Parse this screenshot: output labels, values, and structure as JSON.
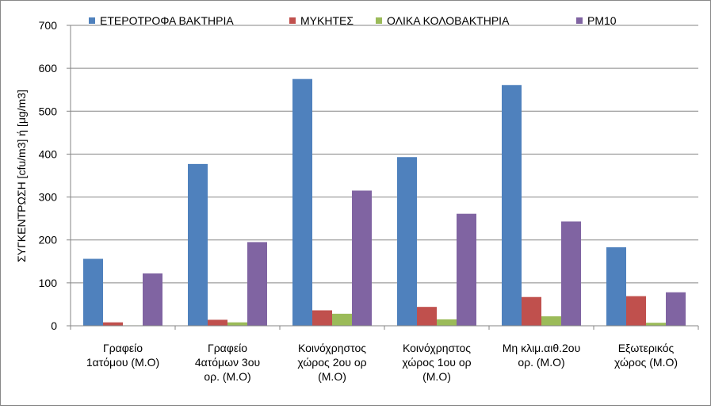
{
  "chart_data": {
    "type": "bar",
    "title": "",
    "xlabel": "",
    "ylabel": "ΣΥΓΚΕΝΤΡΩΣΗ [cfu/m3] ή [μg/m3]",
    "ylim": [
      0,
      700
    ],
    "yticks": [
      0,
      100,
      200,
      300,
      400,
      500,
      600,
      700
    ],
    "grid": "horizontal",
    "legend_position": "top",
    "categories": [
      [
        "Γραφείο",
        "1ατόμου (Μ.Ο)"
      ],
      [
        "Γραφείο",
        "4ατόμων 3ου",
        "ορ. (Μ.Ο)"
      ],
      [
        "Κοινόχρηστος",
        "χώρος 2ου ορ",
        "(Μ.Ο)"
      ],
      [
        "Κοινόχρηστος",
        "χώρος 1ου ορ",
        "(Μ.Ο)"
      ],
      [
        "Μη κλιμ.αιθ.2ου",
        "ορ. (Μ.Ο)"
      ],
      [
        "Εξωτερικός",
        "χώρος (Μ.Ο)"
      ]
    ],
    "series": [
      {
        "name": "ΕΤΕΡΟΤΡΟΦΑ ΒΑΚΤΗΡΙΑ",
        "color": "#4F81BD",
        "values": [
          156,
          377,
          575,
          393,
          561,
          183
        ]
      },
      {
        "name": "ΜΥΚΗΤΕΣ",
        "color": "#C0504D",
        "values": [
          8,
          14,
          36,
          44,
          67,
          69
        ]
      },
      {
        "name": "ΟΛΙΚΑ ΚΟΛΟΒΑΚΤΗΡΙΑ",
        "color": "#9BBB59",
        "values": [
          1,
          8,
          28,
          15,
          22,
          7
        ]
      },
      {
        "name": "PM10",
        "color": "#8064A2",
        "values": [
          122,
          195,
          315,
          261,
          243,
          78
        ]
      }
    ]
  }
}
